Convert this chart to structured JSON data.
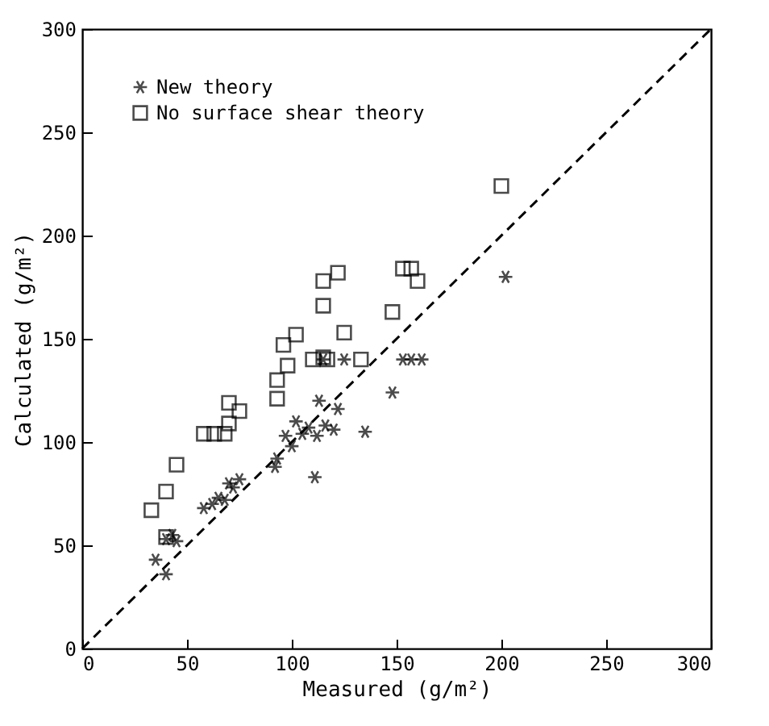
{
  "chart_data": {
    "type": "scatter",
    "xlabel": "Measured (g/m²)",
    "ylabel": "Calculated (g/m²)",
    "xlim": [
      0,
      300
    ],
    "ylim": [
      0,
      300
    ],
    "xticks": [
      0,
      50,
      100,
      150,
      200,
      250,
      300
    ],
    "yticks": [
      0,
      50,
      100,
      150,
      200,
      250,
      300
    ],
    "grid": false,
    "legend": "top left",
    "series": [
      {
        "name": "New theory",
        "color": "#000000",
        "marker": "cross",
        "x": [
          35,
          40,
          40,
          43,
          45,
          58,
          62,
          65,
          68,
          70,
          72,
          75,
          92,
          93,
          97,
          100,
          102,
          105,
          108,
          111,
          112,
          113,
          115,
          116,
          120,
          122,
          125,
          135,
          148,
          153,
          157,
          162,
          202
        ],
        "values": [
          43,
          36,
          53,
          55,
          52,
          68,
          70,
          73,
          72,
          80,
          78,
          82,
          88,
          92,
          103,
          98,
          110,
          104,
          107,
          83,
          103,
          120,
          140,
          108,
          106,
          116,
          140,
          105,
          124,
          140,
          140,
          140,
          180
        ]
      },
      {
        "name": "No surface shear theory",
        "color": "#000000",
        "marker": "square",
        "x": [
          33,
          40,
          40,
          45,
          58,
          63,
          68,
          70,
          70,
          75,
          93,
          93,
          96,
          98,
          102,
          110,
          115,
          117,
          115,
          115,
          122,
          125,
          133,
          148,
          153,
          157,
          160,
          200
        ],
        "values": [
          67,
          54,
          76,
          89,
          104,
          104,
          104,
          119,
          109,
          115,
          121,
          130,
          147,
          137,
          152,
          140,
          141,
          140,
          166,
          178,
          182,
          153,
          140,
          163,
          184,
          184,
          178,
          224
        ]
      },
      {
        "type": "line",
        "color": "#000000",
        "line_style": "dashed",
        "x": [
          0,
          300
        ],
        "values": [
          0,
          300
        ]
      }
    ]
  }
}
